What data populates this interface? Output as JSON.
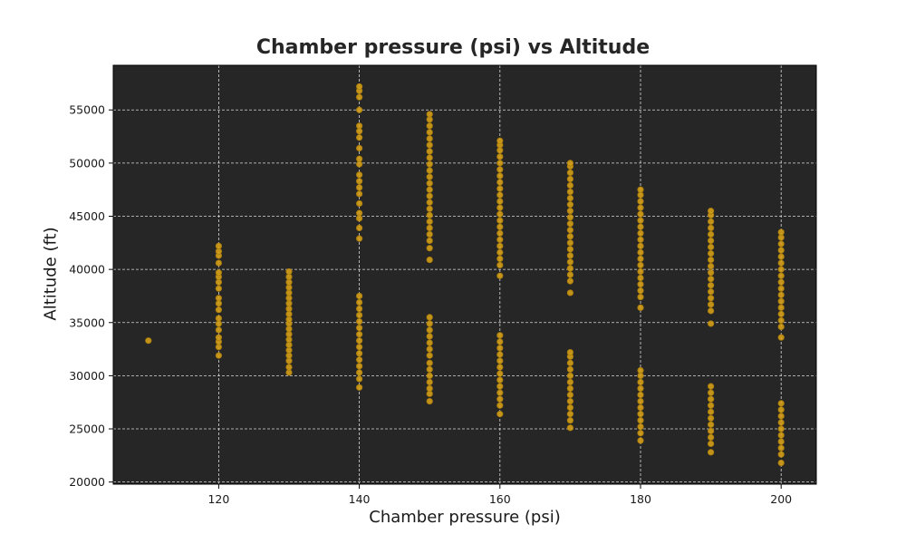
{
  "chart_data": {
    "type": "scatter",
    "title": "Chamber pressure (psi) vs Altitude",
    "xlabel": "Chamber pressure (psi)",
    "ylabel": "Altitude (ft)",
    "xlim": [
      105,
      205
    ],
    "ylim": [
      19800,
      59200
    ],
    "xticks": [
      120,
      140,
      160,
      180,
      200
    ],
    "yticks": [
      20000,
      25000,
      30000,
      35000,
      40000,
      45000,
      50000,
      55000
    ],
    "grid": true,
    "legend": "none",
    "colors": {
      "background": "#262626",
      "point": "#d4a017",
      "point_edge": "#a87b0c",
      "grid": "#d9d9d9",
      "axis": "#000000"
    },
    "series": [
      {
        "points": [
          {
            "x": 110,
            "y": 33300
          },
          {
            "x": 120,
            "y": 31900
          },
          {
            "x": 120,
            "y": 32700
          },
          {
            "x": 120,
            "y": 33200
          },
          {
            "x": 120,
            "y": 33600
          },
          {
            "x": 120,
            "y": 34300
          },
          {
            "x": 120,
            "y": 34900
          },
          {
            "x": 120,
            "y": 35400
          },
          {
            "x": 120,
            "y": 36200
          },
          {
            "x": 120,
            "y": 36800
          },
          {
            "x": 120,
            "y": 37300
          },
          {
            "x": 120,
            "y": 38200
          },
          {
            "x": 120,
            "y": 38800
          },
          {
            "x": 120,
            "y": 39300
          },
          {
            "x": 120,
            "y": 39700
          },
          {
            "x": 120,
            "y": 40600
          },
          {
            "x": 120,
            "y": 41300
          },
          {
            "x": 120,
            "y": 41700
          },
          {
            "x": 120,
            "y": 42200
          },
          {
            "x": 130,
            "y": 30300
          },
          {
            "x": 130,
            "y": 30800
          },
          {
            "x": 130,
            "y": 31400
          },
          {
            "x": 130,
            "y": 31900
          },
          {
            "x": 130,
            "y": 32400
          },
          {
            "x": 130,
            "y": 32900
          },
          {
            "x": 130,
            "y": 33400
          },
          {
            "x": 130,
            "y": 33900
          },
          {
            "x": 130,
            "y": 34400
          },
          {
            "x": 130,
            "y": 34900
          },
          {
            "x": 130,
            "y": 35300
          },
          {
            "x": 130,
            "y": 35800
          },
          {
            "x": 130,
            "y": 36300
          },
          {
            "x": 130,
            "y": 36800
          },
          {
            "x": 130,
            "y": 37300
          },
          {
            "x": 130,
            "y": 37800
          },
          {
            "x": 130,
            "y": 38300
          },
          {
            "x": 130,
            "y": 38800
          },
          {
            "x": 130,
            "y": 39300
          },
          {
            "x": 130,
            "y": 39800
          },
          {
            "x": 140,
            "y": 28900
          },
          {
            "x": 140,
            "y": 29700
          },
          {
            "x": 140,
            "y": 30300
          },
          {
            "x": 140,
            "y": 30900
          },
          {
            "x": 140,
            "y": 31500
          },
          {
            "x": 140,
            "y": 32100
          },
          {
            "x": 140,
            "y": 32700
          },
          {
            "x": 140,
            "y": 33300
          },
          {
            "x": 140,
            "y": 33900
          },
          {
            "x": 140,
            "y": 34500
          },
          {
            "x": 140,
            "y": 35100
          },
          {
            "x": 140,
            "y": 35700
          },
          {
            "x": 140,
            "y": 36300
          },
          {
            "x": 140,
            "y": 36900
          },
          {
            "x": 140,
            "y": 37500
          },
          {
            "x": 140,
            "y": 42900
          },
          {
            "x": 140,
            "y": 43900
          },
          {
            "x": 140,
            "y": 44800
          },
          {
            "x": 140,
            "y": 45300
          },
          {
            "x": 140,
            "y": 46200
          },
          {
            "x": 140,
            "y": 47100
          },
          {
            "x": 140,
            "y": 47700
          },
          {
            "x": 140,
            "y": 48300
          },
          {
            "x": 140,
            "y": 48900
          },
          {
            "x": 140,
            "y": 49900
          },
          {
            "x": 140,
            "y": 50400
          },
          {
            "x": 140,
            "y": 51400
          },
          {
            "x": 140,
            "y": 52400
          },
          {
            "x": 140,
            "y": 53000
          },
          {
            "x": 140,
            "y": 53500
          },
          {
            "x": 140,
            "y": 55000
          },
          {
            "x": 140,
            "y": 56200
          },
          {
            "x": 140,
            "y": 56800
          },
          {
            "x": 140,
            "y": 57200
          },
          {
            "x": 150,
            "y": 27600
          },
          {
            "x": 150,
            "y": 28300
          },
          {
            "x": 150,
            "y": 28800
          },
          {
            "x": 150,
            "y": 29400
          },
          {
            "x": 150,
            "y": 30000
          },
          {
            "x": 150,
            "y": 30600
          },
          {
            "x": 150,
            "y": 31200
          },
          {
            "x": 150,
            "y": 31900
          },
          {
            "x": 150,
            "y": 32500
          },
          {
            "x": 150,
            "y": 33100
          },
          {
            "x": 150,
            "y": 33700
          },
          {
            "x": 150,
            "y": 34300
          },
          {
            "x": 150,
            "y": 34900
          },
          {
            "x": 150,
            "y": 35500
          },
          {
            "x": 150,
            "y": 40900
          },
          {
            "x": 150,
            "y": 42000
          },
          {
            "x": 150,
            "y": 42700
          },
          {
            "x": 150,
            "y": 43300
          },
          {
            "x": 150,
            "y": 43900
          },
          {
            "x": 150,
            "y": 44500
          },
          {
            "x": 150,
            "y": 45100
          },
          {
            "x": 150,
            "y": 45700
          },
          {
            "x": 150,
            "y": 46300
          },
          {
            "x": 150,
            "y": 46900
          },
          {
            "x": 150,
            "y": 47500
          },
          {
            "x": 150,
            "y": 48100
          },
          {
            "x": 150,
            "y": 48700
          },
          {
            "x": 150,
            "y": 49300
          },
          {
            "x": 150,
            "y": 49900
          },
          {
            "x": 150,
            "y": 50500
          },
          {
            "x": 150,
            "y": 51100
          },
          {
            "x": 150,
            "y": 51700
          },
          {
            "x": 150,
            "y": 52300
          },
          {
            "x": 150,
            "y": 52900
          },
          {
            "x": 150,
            "y": 53500
          },
          {
            "x": 150,
            "y": 54100
          },
          {
            "x": 150,
            "y": 54600
          },
          {
            "x": 160,
            "y": 26400
          },
          {
            "x": 160,
            "y": 27200
          },
          {
            "x": 160,
            "y": 27800
          },
          {
            "x": 160,
            "y": 28400
          },
          {
            "x": 160,
            "y": 29000
          },
          {
            "x": 160,
            "y": 29600
          },
          {
            "x": 160,
            "y": 30200
          },
          {
            "x": 160,
            "y": 30800
          },
          {
            "x": 160,
            "y": 31400
          },
          {
            "x": 160,
            "y": 32000
          },
          {
            "x": 160,
            "y": 32600
          },
          {
            "x": 160,
            "y": 33200
          },
          {
            "x": 160,
            "y": 33800
          },
          {
            "x": 160,
            "y": 39400
          },
          {
            "x": 160,
            "y": 40400
          },
          {
            "x": 160,
            "y": 41000
          },
          {
            "x": 160,
            "y": 41600
          },
          {
            "x": 160,
            "y": 42200
          },
          {
            "x": 160,
            "y": 42800
          },
          {
            "x": 160,
            "y": 43400
          },
          {
            "x": 160,
            "y": 44000
          },
          {
            "x": 160,
            "y": 44600
          },
          {
            "x": 160,
            "y": 45200
          },
          {
            "x": 160,
            "y": 45800
          },
          {
            "x": 160,
            "y": 46400
          },
          {
            "x": 160,
            "y": 47000
          },
          {
            "x": 160,
            "y": 47600
          },
          {
            "x": 160,
            "y": 48200
          },
          {
            "x": 160,
            "y": 48800
          },
          {
            "x": 160,
            "y": 49400
          },
          {
            "x": 160,
            "y": 50000
          },
          {
            "x": 160,
            "y": 50600
          },
          {
            "x": 160,
            "y": 51200
          },
          {
            "x": 160,
            "y": 51700
          },
          {
            "x": 160,
            "y": 52100
          },
          {
            "x": 170,
            "y": 25100
          },
          {
            "x": 170,
            "y": 25800
          },
          {
            "x": 170,
            "y": 26400
          },
          {
            "x": 170,
            "y": 27000
          },
          {
            "x": 170,
            "y": 27600
          },
          {
            "x": 170,
            "y": 28200
          },
          {
            "x": 170,
            "y": 28800
          },
          {
            "x": 170,
            "y": 29400
          },
          {
            "x": 170,
            "y": 30000
          },
          {
            "x": 170,
            "y": 30600
          },
          {
            "x": 170,
            "y": 31200
          },
          {
            "x": 170,
            "y": 31800
          },
          {
            "x": 170,
            "y": 32200
          },
          {
            "x": 170,
            "y": 37800
          },
          {
            "x": 170,
            "y": 38900
          },
          {
            "x": 170,
            "y": 39500
          },
          {
            "x": 170,
            "y": 40100
          },
          {
            "x": 170,
            "y": 40700
          },
          {
            "x": 170,
            "y": 41300
          },
          {
            "x": 170,
            "y": 41900
          },
          {
            "x": 170,
            "y": 42500
          },
          {
            "x": 170,
            "y": 43100
          },
          {
            "x": 170,
            "y": 43700
          },
          {
            "x": 170,
            "y": 44300
          },
          {
            "x": 170,
            "y": 44900
          },
          {
            "x": 170,
            "y": 45500
          },
          {
            "x": 170,
            "y": 46100
          },
          {
            "x": 170,
            "y": 46700
          },
          {
            "x": 170,
            "y": 47300
          },
          {
            "x": 170,
            "y": 47900
          },
          {
            "x": 170,
            "y": 48500
          },
          {
            "x": 170,
            "y": 49100
          },
          {
            "x": 170,
            "y": 49700
          },
          {
            "x": 170,
            "y": 50000
          },
          {
            "x": 180,
            "y": 23900
          },
          {
            "x": 180,
            "y": 24600
          },
          {
            "x": 180,
            "y": 25200
          },
          {
            "x": 180,
            "y": 25800
          },
          {
            "x": 180,
            "y": 26400
          },
          {
            "x": 180,
            "y": 27000
          },
          {
            "x": 180,
            "y": 27600
          },
          {
            "x": 180,
            "y": 28200
          },
          {
            "x": 180,
            "y": 28800
          },
          {
            "x": 180,
            "y": 29400
          },
          {
            "x": 180,
            "y": 30000
          },
          {
            "x": 180,
            "y": 30500
          },
          {
            "x": 180,
            "y": 36400
          },
          {
            "x": 180,
            "y": 37400
          },
          {
            "x": 180,
            "y": 38000
          },
          {
            "x": 180,
            "y": 38600
          },
          {
            "x": 180,
            "y": 39200
          },
          {
            "x": 180,
            "y": 39800
          },
          {
            "x": 180,
            "y": 40400
          },
          {
            "x": 180,
            "y": 41000
          },
          {
            "x": 180,
            "y": 41600
          },
          {
            "x": 180,
            "y": 42200
          },
          {
            "x": 180,
            "y": 42800
          },
          {
            "x": 180,
            "y": 43400
          },
          {
            "x": 180,
            "y": 44000
          },
          {
            "x": 180,
            "y": 44600
          },
          {
            "x": 180,
            "y": 45200
          },
          {
            "x": 180,
            "y": 45800
          },
          {
            "x": 180,
            "y": 46400
          },
          {
            "x": 180,
            "y": 47000
          },
          {
            "x": 180,
            "y": 47500
          },
          {
            "x": 190,
            "y": 22800
          },
          {
            "x": 190,
            "y": 23600
          },
          {
            "x": 190,
            "y": 24200
          },
          {
            "x": 190,
            "y": 24800
          },
          {
            "x": 190,
            "y": 25400
          },
          {
            "x": 190,
            "y": 26000
          },
          {
            "x": 190,
            "y": 26600
          },
          {
            "x": 190,
            "y": 27200
          },
          {
            "x": 190,
            "y": 27800
          },
          {
            "x": 190,
            "y": 28400
          },
          {
            "x": 190,
            "y": 29000
          },
          {
            "x": 190,
            "y": 34900
          },
          {
            "x": 190,
            "y": 36100
          },
          {
            "x": 190,
            "y": 36700
          },
          {
            "x": 190,
            "y": 37300
          },
          {
            "x": 190,
            "y": 37900
          },
          {
            "x": 190,
            "y": 38500
          },
          {
            "x": 190,
            "y": 39100
          },
          {
            "x": 190,
            "y": 39700
          },
          {
            "x": 190,
            "y": 40300
          },
          {
            "x": 190,
            "y": 40900
          },
          {
            "x": 190,
            "y": 41500
          },
          {
            "x": 190,
            "y": 42100
          },
          {
            "x": 190,
            "y": 42700
          },
          {
            "x": 190,
            "y": 43300
          },
          {
            "x": 190,
            "y": 43900
          },
          {
            "x": 190,
            "y": 44500
          },
          {
            "x": 190,
            "y": 45100
          },
          {
            "x": 190,
            "y": 45500
          },
          {
            "x": 200,
            "y": 21800
          },
          {
            "x": 200,
            "y": 22600
          },
          {
            "x": 200,
            "y": 23200
          },
          {
            "x": 200,
            "y": 23800
          },
          {
            "x": 200,
            "y": 24400
          },
          {
            "x": 200,
            "y": 25000
          },
          {
            "x": 200,
            "y": 25600
          },
          {
            "x": 200,
            "y": 26200
          },
          {
            "x": 200,
            "y": 26800
          },
          {
            "x": 200,
            "y": 27400
          },
          {
            "x": 200,
            "y": 33600
          },
          {
            "x": 200,
            "y": 34600
          },
          {
            "x": 200,
            "y": 35200
          },
          {
            "x": 200,
            "y": 35800
          },
          {
            "x": 200,
            "y": 36400
          },
          {
            "x": 200,
            "y": 37000
          },
          {
            "x": 200,
            "y": 37600
          },
          {
            "x": 200,
            "y": 38200
          },
          {
            "x": 200,
            "y": 38800
          },
          {
            "x": 200,
            "y": 39400
          },
          {
            "x": 200,
            "y": 40000
          },
          {
            "x": 200,
            "y": 40600
          },
          {
            "x": 200,
            "y": 41200
          },
          {
            "x": 200,
            "y": 41800
          },
          {
            "x": 200,
            "y": 42400
          },
          {
            "x": 200,
            "y": 43000
          },
          {
            "x": 200,
            "y": 43500
          }
        ]
      }
    ]
  }
}
